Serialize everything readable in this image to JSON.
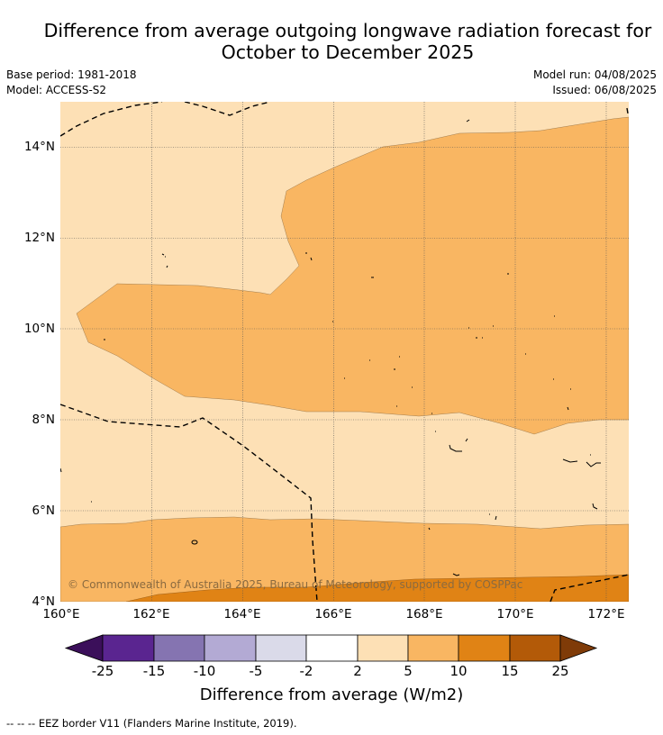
{
  "header": {
    "title_line1": "Difference from average outgoing longwave radiation forecast for",
    "title_line2": "October to December 2025",
    "base_period": "Base period: 1981-2018",
    "model": "Model: ACCESS-S2",
    "model_run": "Model run: 04/08/2025",
    "issued": "Issued: 06/08/2025"
  },
  "map": {
    "lat_labels": [
      "14°N",
      "12°N",
      "10°N",
      "8°N",
      "6°N",
      "4°N"
    ],
    "lon_labels": [
      "160°E",
      "162°E",
      "164°E",
      "166°E",
      "168°E",
      "170°E",
      "172°E"
    ],
    "copyright": "© Commonwealth of Australia 2025, Bureau of Meteorology, supported by COSPPac",
    "category_colors": {
      "2_to_5": "#fde0b5",
      "5_to_10": "#f9b662",
      "10_to_15": "#e08315"
    }
  },
  "colorbar": {
    "ticks": [
      "-25",
      "-15",
      "-10",
      "-5",
      "-2",
      "2",
      "5",
      "10",
      "15",
      "25"
    ],
    "colors": [
      "#3b0f5a",
      "#5a2590",
      "#8574b1",
      "#b3aad4",
      "#dadae9",
      "#ffffff",
      "#fde0b5",
      "#f9b662",
      "#e08315",
      "#b35a08",
      "#7f3b08"
    ],
    "label": "Difference from average (W/m2)"
  },
  "legend": {
    "eez": "--  --  -- EEZ border V11 (Flanders Marine Institute, 2019)."
  }
}
